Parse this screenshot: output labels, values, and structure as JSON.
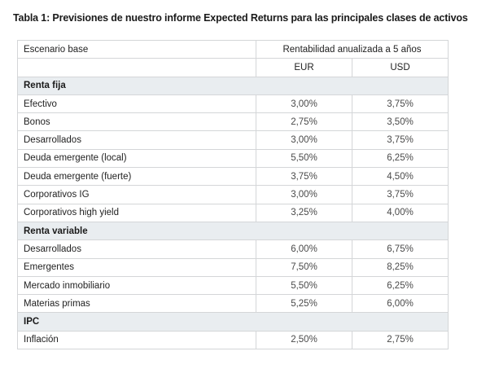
{
  "title": "Tabla 1: Previsiones de nuestro informe Expected Returns para las principales clases de activos",
  "header": {
    "scenario": "Escenario base",
    "metric": "Rentabilidad anualizada a 5 años",
    "currency_1": "EUR",
    "currency_2": "USD"
  },
  "sections": [
    {
      "name": "Renta fija",
      "rows": [
        {
          "label": "Efectivo",
          "eur": "3,00%",
          "usd": "3,75%"
        },
        {
          "label": "Bonos",
          "eur": "2,75%",
          "usd": "3,50%"
        },
        {
          "label": "Desarrollados",
          "eur": "3,00%",
          "usd": "3,75%"
        },
        {
          "label": "Deuda emergente (local)",
          "eur": "5,50%",
          "usd": "6,25%"
        },
        {
          "label": "Deuda emergente (fuerte)",
          "eur": "3,75%",
          "usd": "4,50%"
        },
        {
          "label": "Corporativos IG",
          "eur": "3,00%",
          "usd": "3,75%"
        },
        {
          "label": "Corporativos high yield",
          "eur": "3,25%",
          "usd": "4,00%"
        }
      ]
    },
    {
      "name": "Renta variable",
      "rows": [
        {
          "label": "Desarrollados",
          "eur": "6,00%",
          "usd": "6,75%"
        },
        {
          "label": "Emergentes",
          "eur": "7,50%",
          "usd": "8,25%"
        },
        {
          "label": "Mercado inmobiliario",
          "eur": "5,50%",
          "usd": "6,25%"
        },
        {
          "label": "Materias primas",
          "eur": "5,25%",
          "usd": "6,00%"
        }
      ]
    },
    {
      "name": "IPC",
      "rows": [
        {
          "label": "Inflación",
          "eur": "2,50%",
          "usd": "2,75%"
        }
      ]
    }
  ]
}
